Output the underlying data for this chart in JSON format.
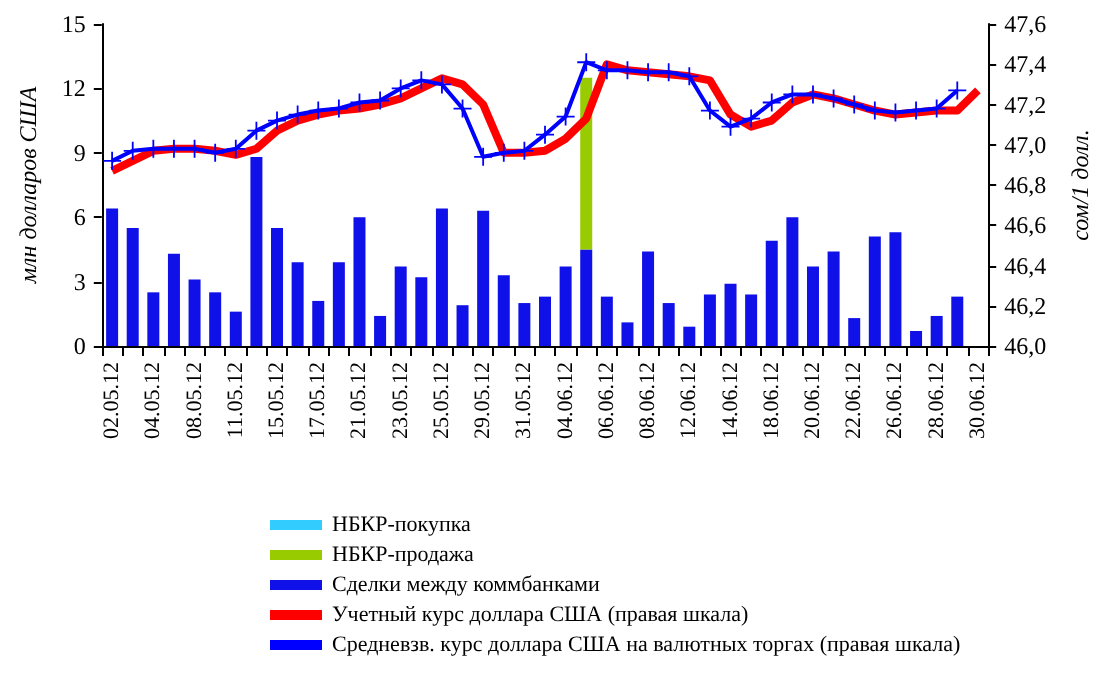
{
  "chart_data": {
    "type": "bar",
    "stacked": true,
    "ylabel": "млн долларов США",
    "y2label": "сом/1 долл.",
    "categories": [
      "02.05.12",
      null,
      "04.05.12",
      null,
      "08.05.12",
      null,
      "11.05.12",
      null,
      "15.05.12",
      null,
      "17.05.12",
      null,
      "21.05.12",
      null,
      "23.05.12",
      null,
      "25.05.12",
      null,
      "29.05.12",
      null,
      "31.05.12",
      null,
      "04.06.12",
      null,
      "06.06.12",
      null,
      "08.06.12",
      null,
      "12.06.12",
      null,
      "14.06.12",
      null,
      "18.06.12",
      null,
      "20.06.12",
      null,
      "22.06.12",
      null,
      "26.06.12",
      null,
      "28.06.12",
      null,
      "30.06.12"
    ],
    "series": [
      {
        "name": "Сделки между коммбанками",
        "color": "#1010e8",
        "values": [
          6.4,
          5.5,
          2.5,
          4.3,
          3.1,
          2.5,
          1.6,
          8.8,
          5.5,
          3.9,
          2.1,
          3.9,
          6.0,
          1.4,
          3.7,
          3.2,
          6.4,
          1.9,
          6.3,
          3.3,
          2.0,
          2.3,
          3.7,
          4.5,
          2.3,
          1.1,
          4.4,
          2.0,
          0.9,
          2.4,
          2.9,
          2.4,
          4.9,
          6.0,
          3.7,
          4.4,
          1.3,
          5.1,
          5.3,
          0.7,
          1.4,
          2.3,
          null
        ]
      },
      {
        "name": "НБКР-продажа",
        "color": "#99cc00",
        "values": [
          null,
          null,
          null,
          null,
          null,
          null,
          null,
          null,
          null,
          null,
          null,
          null,
          null,
          null,
          null,
          null,
          null,
          null,
          null,
          null,
          null,
          null,
          null,
          8.0,
          null,
          null,
          null,
          null,
          null,
          null,
          null,
          null,
          null,
          null,
          null,
          null,
          null,
          null,
          null,
          null,
          null,
          null,
          null
        ]
      },
      {
        "name": "НБКР-покупка",
        "color": "#33ccff",
        "values": [
          null,
          null,
          null,
          null,
          null,
          null,
          null,
          null,
          null,
          null,
          null,
          null,
          null,
          null,
          null,
          null,
          null,
          null,
          null,
          null,
          null,
          null,
          null,
          null,
          null,
          null,
          null,
          null,
          null,
          null,
          null,
          null,
          null,
          null,
          null,
          null,
          null,
          null,
          null,
          null,
          null,
          null,
          null
        ]
      },
      {
        "name": "Учетный курс доллара США (правая шкала)",
        "type": "line",
        "axis": "y2",
        "color": "#ff0000",
        "marker": "none",
        "values": [
          46.87,
          46.92,
          46.97,
          46.98,
          46.98,
          46.97,
          46.95,
          46.98,
          47.07,
          47.12,
          47.15,
          47.17,
          47.18,
          47.2,
          47.23,
          47.28,
          47.33,
          47.3,
          47.2,
          46.96,
          46.96,
          46.97,
          47.03,
          47.13,
          47.4,
          47.37,
          47.36,
          47.35,
          47.34,
          47.32,
          47.15,
          47.09,
          47.12,
          47.21,
          47.25,
          47.23,
          47.2,
          47.17,
          47.15,
          47.16,
          47.17,
          47.17,
          47.27
        ]
      },
      {
        "name": "Средневзв. курс доллара США на валютных торгах (правая шкала)",
        "type": "line",
        "axis": "y2",
        "color": "#0000ff",
        "marker": "cross",
        "values": [
          46.92,
          46.97,
          46.98,
          46.98,
          46.98,
          46.96,
          46.98,
          47.07,
          47.12,
          47.15,
          47.17,
          47.18,
          47.21,
          47.22,
          47.28,
          47.32,
          47.3,
          47.18,
          46.94,
          46.96,
          46.97,
          47.05,
          47.14,
          47.41,
          47.37,
          47.37,
          47.36,
          47.36,
          47.34,
          47.17,
          47.09,
          47.13,
          47.21,
          47.25,
          47.25,
          47.23,
          47.2,
          47.17,
          47.16,
          47.17,
          47.18,
          47.27,
          null
        ]
      }
    ],
    "ylim": [
      0,
      15
    ],
    "yticks": [
      0,
      3,
      6,
      9,
      12,
      15
    ],
    "y2lim": [
      46.0,
      47.6
    ],
    "y2ticks": [
      {
        "value": 46.0,
        "label": "46,0"
      },
      {
        "value": 46.2,
        "label": "46,2"
      },
      {
        "value": 46.4,
        "label": "46,4"
      },
      {
        "value": 46.6,
        "label": "46,6"
      },
      {
        "value": 46.8,
        "label": "46,8"
      },
      {
        "value": 47.0,
        "label": "47,0"
      },
      {
        "value": 47.2,
        "label": "47,2"
      },
      {
        "value": 47.4,
        "label": "47,4"
      },
      {
        "value": 47.6,
        "label": "47,6"
      }
    ],
    "grid": false,
    "legend": "bottom"
  }
}
